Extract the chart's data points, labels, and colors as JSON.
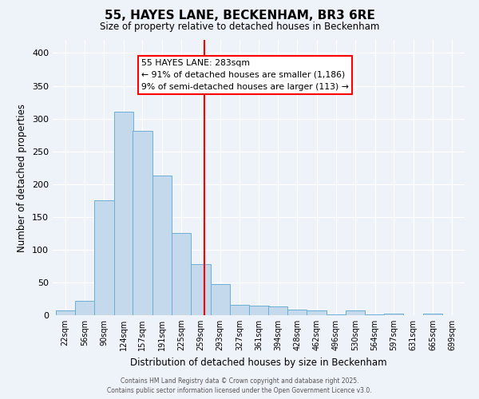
{
  "title": "55, HAYES LANE, BECKENHAM, BR3 6RE",
  "subtitle": "Size of property relative to detached houses in Beckenham",
  "xlabel": "Distribution of detached houses by size in Beckenham",
  "ylabel": "Number of detached properties",
  "bin_labels": [
    "22sqm",
    "56sqm",
    "90sqm",
    "124sqm",
    "157sqm",
    "191sqm",
    "225sqm",
    "259sqm",
    "293sqm",
    "327sqm",
    "361sqm",
    "394sqm",
    "428sqm",
    "462sqm",
    "496sqm",
    "530sqm",
    "564sqm",
    "597sqm",
    "631sqm",
    "665sqm",
    "699sqm"
  ],
  "bin_edges": [
    22,
    56,
    90,
    124,
    157,
    191,
    225,
    259,
    293,
    327,
    361,
    394,
    428,
    462,
    496,
    530,
    564,
    597,
    631,
    665,
    699
  ],
  "bar_heights": [
    7,
    22,
    175,
    311,
    281,
    213,
    125,
    78,
    48,
    16,
    15,
    14,
    8,
    7,
    1,
    7,
    1,
    3,
    0,
    3
  ],
  "bar_color": "#c5d9ed",
  "bar_edge_color": "#6baed6",
  "vline_x": 283,
  "vline_color": "red",
  "annotation_title": "55 HAYES LANE: 283sqm",
  "annotation_line1": "← 91% of detached houses are smaller (1,186)",
  "annotation_line2": "9% of semi-detached houses are larger (113) →",
  "annotation_box_color": "white",
  "annotation_box_edgecolor": "red",
  "ylim": [
    0,
    420
  ],
  "yticks": [
    0,
    50,
    100,
    150,
    200,
    250,
    300,
    350,
    400
  ],
  "background_color": "#eef2f9",
  "grid_color": "white",
  "footer1": "Contains HM Land Registry data © Crown copyright and database right 2025.",
  "footer2": "Contains public sector information licensed under the Open Government Licence v3.0."
}
